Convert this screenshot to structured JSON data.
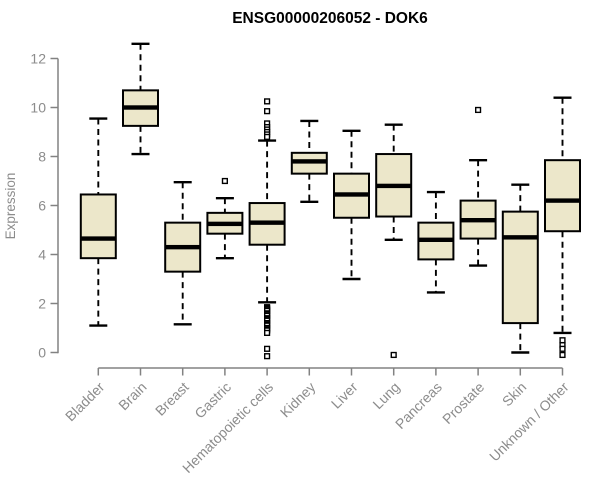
{
  "page": {
    "background": "#FFFFFF"
  },
  "chart_data": {
    "type": "boxplot",
    "title": "ENSG00000206052 - DOK6",
    "ylabel": "Expression",
    "xlabel": "",
    "ylim": [
      0,
      12
    ],
    "yticks": [
      0,
      2,
      4,
      6,
      8,
      10,
      12
    ],
    "grid": false,
    "legend": null,
    "x_label_rotation": 45,
    "categories": [
      "Bladder",
      "Brain",
      "Breast",
      "Gastric",
      "Hematopoietic cells",
      "Kidney",
      "Liver",
      "Lung",
      "Pancreas",
      "Prostate",
      "Skin",
      "Unknown / Other"
    ],
    "series": [
      {
        "name": "Bladder",
        "low": 1.1,
        "q1": 3.85,
        "median": 4.65,
        "q3": 6.45,
        "high": 9.55,
        "outliers": []
      },
      {
        "name": "Brain",
        "low": 8.1,
        "q1": 9.25,
        "median": 10.0,
        "q3": 10.7,
        "high": 12.6,
        "outliers": []
      },
      {
        "name": "Breast",
        "low": 1.15,
        "q1": 3.3,
        "median": 4.3,
        "q3": 5.3,
        "high": 6.95,
        "outliers": []
      },
      {
        "name": "Gastric",
        "low": 3.85,
        "q1": 4.85,
        "median": 5.25,
        "q3": 5.7,
        "high": 6.3,
        "outliers": [
          7.0
        ]
      },
      {
        "name": "Hematopoietic cells",
        "low": 2.05,
        "q1": 4.4,
        "median": 5.3,
        "q3": 6.1,
        "high": 8.65,
        "outliers": [
          10.25,
          9.85,
          9.35,
          9.2,
          9.1,
          9.0,
          8.9,
          8.8,
          1.85,
          1.8,
          1.75,
          1.7,
          1.6,
          1.55,
          1.5,
          1.4,
          1.35,
          1.3,
          1.2,
          1.15,
          1.1,
          1.0,
          0.95,
          0.9,
          0.8,
          0.15,
          -0.15
        ]
      },
      {
        "name": "Kidney",
        "low": 6.15,
        "q1": 7.3,
        "median": 7.8,
        "q3": 8.15,
        "high": 9.45,
        "outliers": []
      },
      {
        "name": "Liver",
        "low": 3.0,
        "q1": 5.5,
        "median": 6.45,
        "q3": 7.3,
        "high": 9.05,
        "outliers": []
      },
      {
        "name": "Lung",
        "low": 4.6,
        "q1": 5.55,
        "median": 6.8,
        "q3": 8.1,
        "high": 9.3,
        "outliers": [
          -0.1
        ]
      },
      {
        "name": "Pancreas",
        "low": 2.45,
        "q1": 3.8,
        "median": 4.6,
        "q3": 5.3,
        "high": 6.55,
        "outliers": []
      },
      {
        "name": "Prostate",
        "low": 3.55,
        "q1": 4.65,
        "median": 5.4,
        "q3": 6.2,
        "high": 7.85,
        "outliers": [
          9.9
        ]
      },
      {
        "name": "Skin",
        "low": 0.0,
        "q1": 1.2,
        "median": 4.7,
        "q3": 5.75,
        "high": 6.85,
        "outliers": []
      },
      {
        "name": "Unknown / Other",
        "low": 0.8,
        "q1": 4.95,
        "median": 6.2,
        "q3": 7.85,
        "high": 10.4,
        "outliers": [
          0.5,
          0.3,
          0.15,
          -0.1
        ]
      }
    ],
    "colors": {
      "box_fill": "#ECE7CA",
      "box_stroke": "#000000",
      "median": "#000000",
      "whisker": "#000000",
      "outlier_stroke": "#000000",
      "outlier_fill": "#FFFFFF",
      "axis": "#828282",
      "tick_label": "#8C8C8C",
      "title": "#000000",
      "background": "#FFFFFF"
    }
  }
}
